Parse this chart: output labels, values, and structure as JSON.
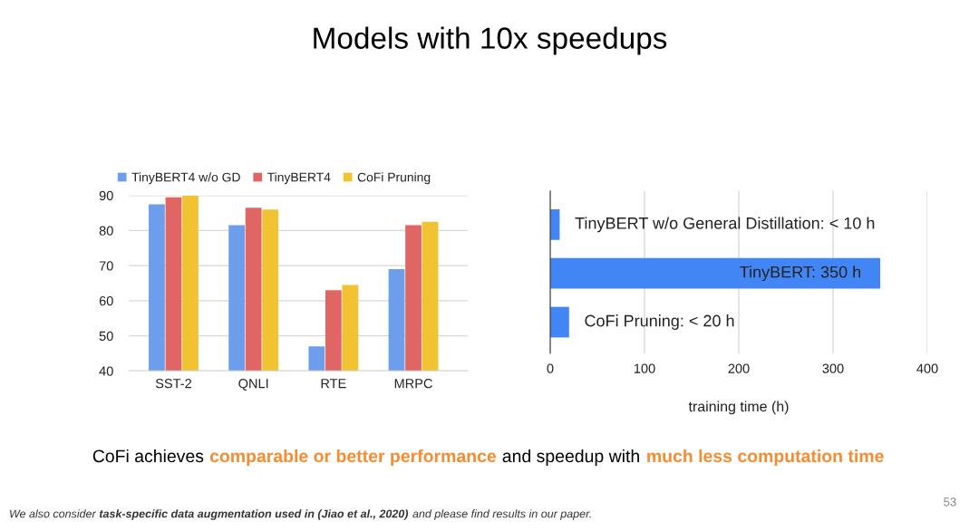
{
  "chart_data": [
    {
      "type": "other",
      "title": "Models with 10x speedups"
    },
    {
      "type": "bar",
      "categories": [
        "SST-2",
        "QNLI",
        "RTE",
        "MRPC"
      ],
      "series": [
        {
          "name": "TinyBERT4 w/o GD",
          "color": "#6d9eeb",
          "values": [
            87.5,
            81.5,
            47,
            69
          ]
        },
        {
          "name": "TinyBERT4",
          "color": "#e06666",
          "values": [
            89.5,
            86.5,
            63,
            81.5
          ]
        },
        {
          "name": "CoFi Pruning",
          "color": "#f1c232",
          "values": [
            90,
            86,
            64.5,
            82.5
          ]
        }
      ],
      "ylim": [
        40,
        90
      ],
      "yticks": [
        40,
        50,
        60,
        70,
        80,
        90
      ],
      "grid": "y",
      "legend": "top left"
    },
    {
      "type": "bar",
      "orientation": "horizontal",
      "categories": [
        null,
        null,
        null
      ],
      "series": [
        {
          "color": "#4285f4",
          "values": [
            10,
            350,
            20
          ],
          "value_labels": [
            "TinyBERT w/o General Distillation: < 10 h",
            "TinyBERT: 350 h",
            "CoFi Pruning: < 20 h"
          ]
        }
      ],
      "xlim": [
        0,
        400
      ],
      "xticks": [
        0,
        100,
        200,
        300,
        400
      ],
      "xlabel": "training time (h)",
      "grid": "x",
      "tick_labels": "x"
    },
    {
      "type": "other",
      "annotations": [
        "CoFi achieves",
        "comparable or better performance",
        "and speedup with",
        "much less computation time",
        "We also consider",
        "task-specific data augmentation used in (Jiao et al., 2020)",
        "and please find results in our paper.",
        "53"
      ]
    }
  ]
}
